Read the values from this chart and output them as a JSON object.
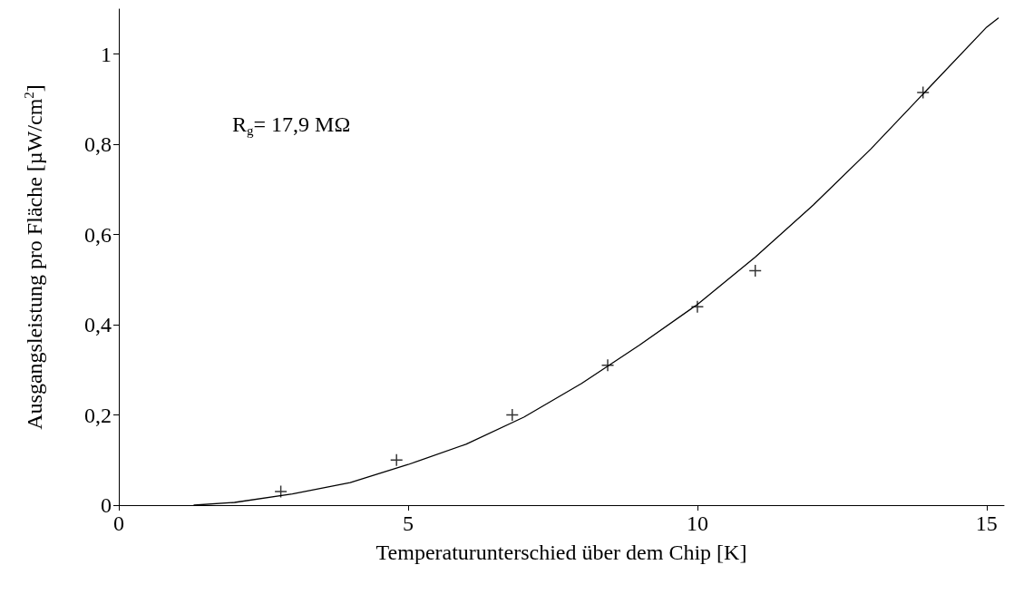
{
  "chart_data": {
    "type": "scatter",
    "xlabel": "Temperaturunterschied über dem Chip [K]",
    "ylabel": "Ausgangsleistung pro Fläche [µW/cm$^{2}$]",
    "annotations": [
      "R$_{g}$= 17,9 MΩ"
    ],
    "xlim": [
      0,
      15.3
    ],
    "xticks": [
      0,
      5,
      10,
      15
    ],
    "ylim": [
      0,
      1.1
    ],
    "yticks": [
      0,
      {
        "value": 0.2,
        "label": "0,2"
      },
      {
        "value": 0.4,
        "label": "0,4"
      },
      {
        "value": 0.6,
        "label": "0,6"
      },
      {
        "value": 0.8,
        "label": "0,8"
      },
      1
    ],
    "series": [
      {
        "marker": "cross",
        "color": "#000000",
        "x": [
          2.8,
          4.8,
          6.8,
          8.45,
          10,
          11,
          13.9
        ],
        "values": [
          0.03,
          0.1,
          0.2,
          0.31,
          0.44,
          0.52,
          0.915
        ]
      },
      {
        "type": "line",
        "marker": "none",
        "line_style": "solid",
        "color": "#000000",
        "x": [
          1.3,
          2,
          3,
          4,
          5,
          6,
          7,
          8,
          9,
          10,
          11,
          12,
          13,
          14,
          15,
          15.2
        ],
        "values": [
          0,
          0.006,
          0.025,
          0.05,
          0.09,
          0.135,
          0.195,
          0.27,
          0.355,
          0.445,
          0.55,
          0.665,
          0.79,
          0.925,
          1.06,
          1.08
        ]
      }
    ]
  }
}
